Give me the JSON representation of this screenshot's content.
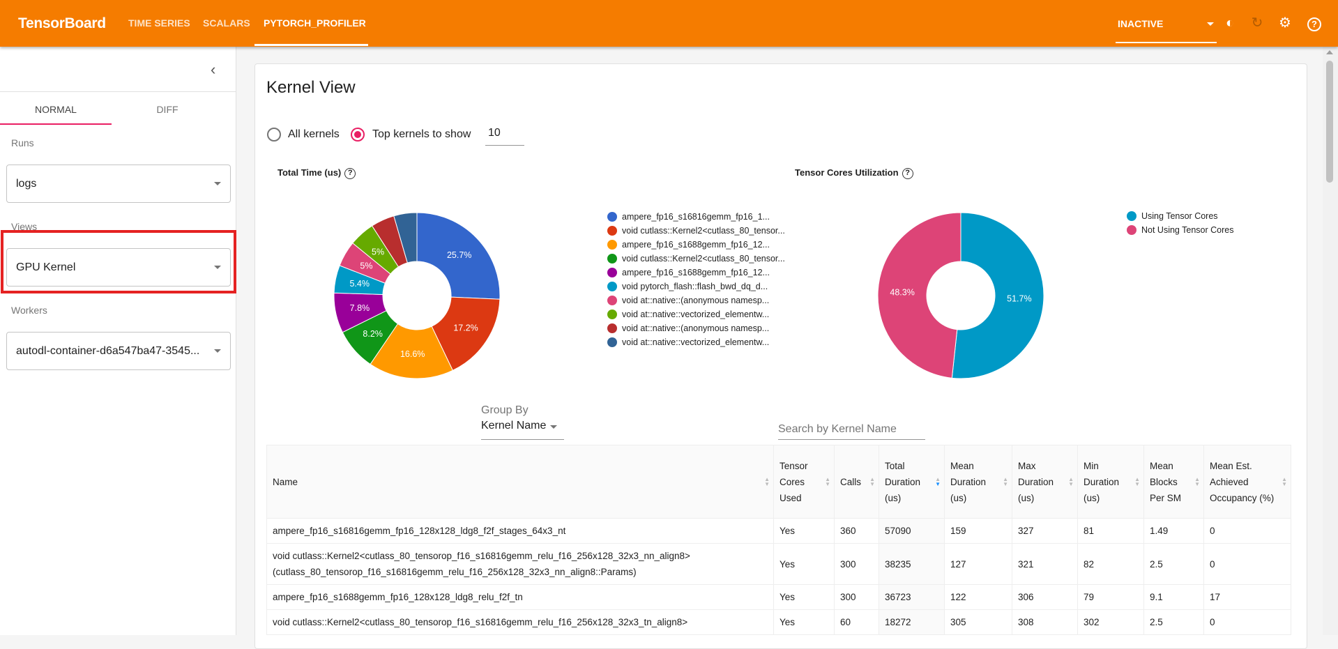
{
  "header": {
    "logo": "TensorBoard",
    "tabs": [
      "TIME SERIES",
      "SCALARS",
      "PYTORCH_PROFILER"
    ],
    "active_tab": "PYTORCH_PROFILER",
    "status": "INACTIVE",
    "brand_color": "#f57c00"
  },
  "sidebar": {
    "tabs": [
      "NORMAL",
      "DIFF"
    ],
    "active_tab": "NORMAL",
    "runs_label": "Runs",
    "runs_value": "logs",
    "views_label": "Views",
    "views_value": "GPU Kernel",
    "workers_label": "Workers",
    "workers_value": "autodl-container-d6a547ba47-3545..."
  },
  "main": {
    "title": "Kernel View",
    "radio_all": "All kernels",
    "radio_top": "Top kernels to show",
    "radio_selected": "top",
    "top_n": "10",
    "group_by_label": "Group By",
    "group_by_value": "Kernel Name",
    "search_placeholder": "Search by Kernel Name"
  },
  "chart_data": [
    {
      "type": "pie",
      "title": "Total Time (us)",
      "donut": true,
      "legend": "right",
      "categories": [
        "ampere_fp16_s16816gemm_fp16_1...",
        "void cutlass::Kernel2<cutlass_80_tensor...",
        "ampere_fp16_s1688gemm_fp16_12...",
        "void cutlass::Kernel2<cutlass_80_tensor...",
        "ampere_fp16_s1688gemm_fp16_12...",
        "void pytorch_flash::flash_bwd_dq_d...",
        "void at::native::(anonymous namesp...",
        "void at::native::vectorized_elementw...",
        "void at::native::(anonymous namesp...",
        "void at::native::vectorized_elementw..."
      ],
      "values": [
        25.7,
        17.2,
        16.6,
        8.2,
        7.8,
        5.4,
        5,
        5,
        4.6,
        4.5
      ],
      "labels": [
        "25.7%",
        "17.2%",
        "16.6%",
        "8.2%",
        "7.8%",
        "5.4%",
        "5%",
        "5%",
        "",
        ""
      ],
      "colors": [
        "#3366cc",
        "#dc3912",
        "#ff9900",
        "#109618",
        "#990099",
        "#0099c6",
        "#dd4477",
        "#66aa00",
        "#b82e2e",
        "#316395"
      ]
    },
    {
      "type": "pie",
      "title": "Tensor Cores Utilization",
      "donut": true,
      "legend": "right",
      "categories": [
        "Using Tensor Cores",
        "Not Using Tensor Cores"
      ],
      "values": [
        51.7,
        48.3
      ],
      "labels": [
        "51.7%",
        "48.3%"
      ],
      "colors": [
        "#0099c6",
        "#dd4477"
      ]
    }
  ],
  "table": {
    "columns": [
      "Name",
      "Tensor Cores Used",
      "Calls",
      "Total Duration (us)",
      "Mean Duration (us)",
      "Max Duration (us)",
      "Min Duration (us)",
      "Mean Blocks Per SM",
      "Mean Est. Achieved Occupancy (%)"
    ],
    "sorted_column": "Total Duration (us)",
    "rows": [
      [
        "ampere_fp16_s16816gemm_fp16_128x128_ldg8_f2f_stages_64x3_nt",
        "Yes",
        "360",
        "57090",
        "159",
        "327",
        "81",
        "1.49",
        "0"
      ],
      [
        "void cutlass::Kernel2<cutlass_80_tensorop_f16_s16816gemm_relu_f16_256x128_32x3_nn_align8>(cutlass_80_tensorop_f16_s16816gemm_relu_f16_256x128_32x3_nn_align8::Params)",
        "Yes",
        "300",
        "38235",
        "127",
        "321",
        "82",
        "2.5",
        "0"
      ],
      [
        "ampere_fp16_s1688gemm_fp16_128x128_ldg8_relu_f2f_tn",
        "Yes",
        "300",
        "36723",
        "122",
        "306",
        "79",
        "9.1",
        "17"
      ],
      [
        "void cutlass::Kernel2<cutlass_80_tensorop_f16_s16816gemm_relu_f16_256x128_32x3_tn_align8>",
        "Yes",
        "60",
        "18272",
        "305",
        "308",
        "302",
        "2.5",
        "0"
      ]
    ]
  }
}
